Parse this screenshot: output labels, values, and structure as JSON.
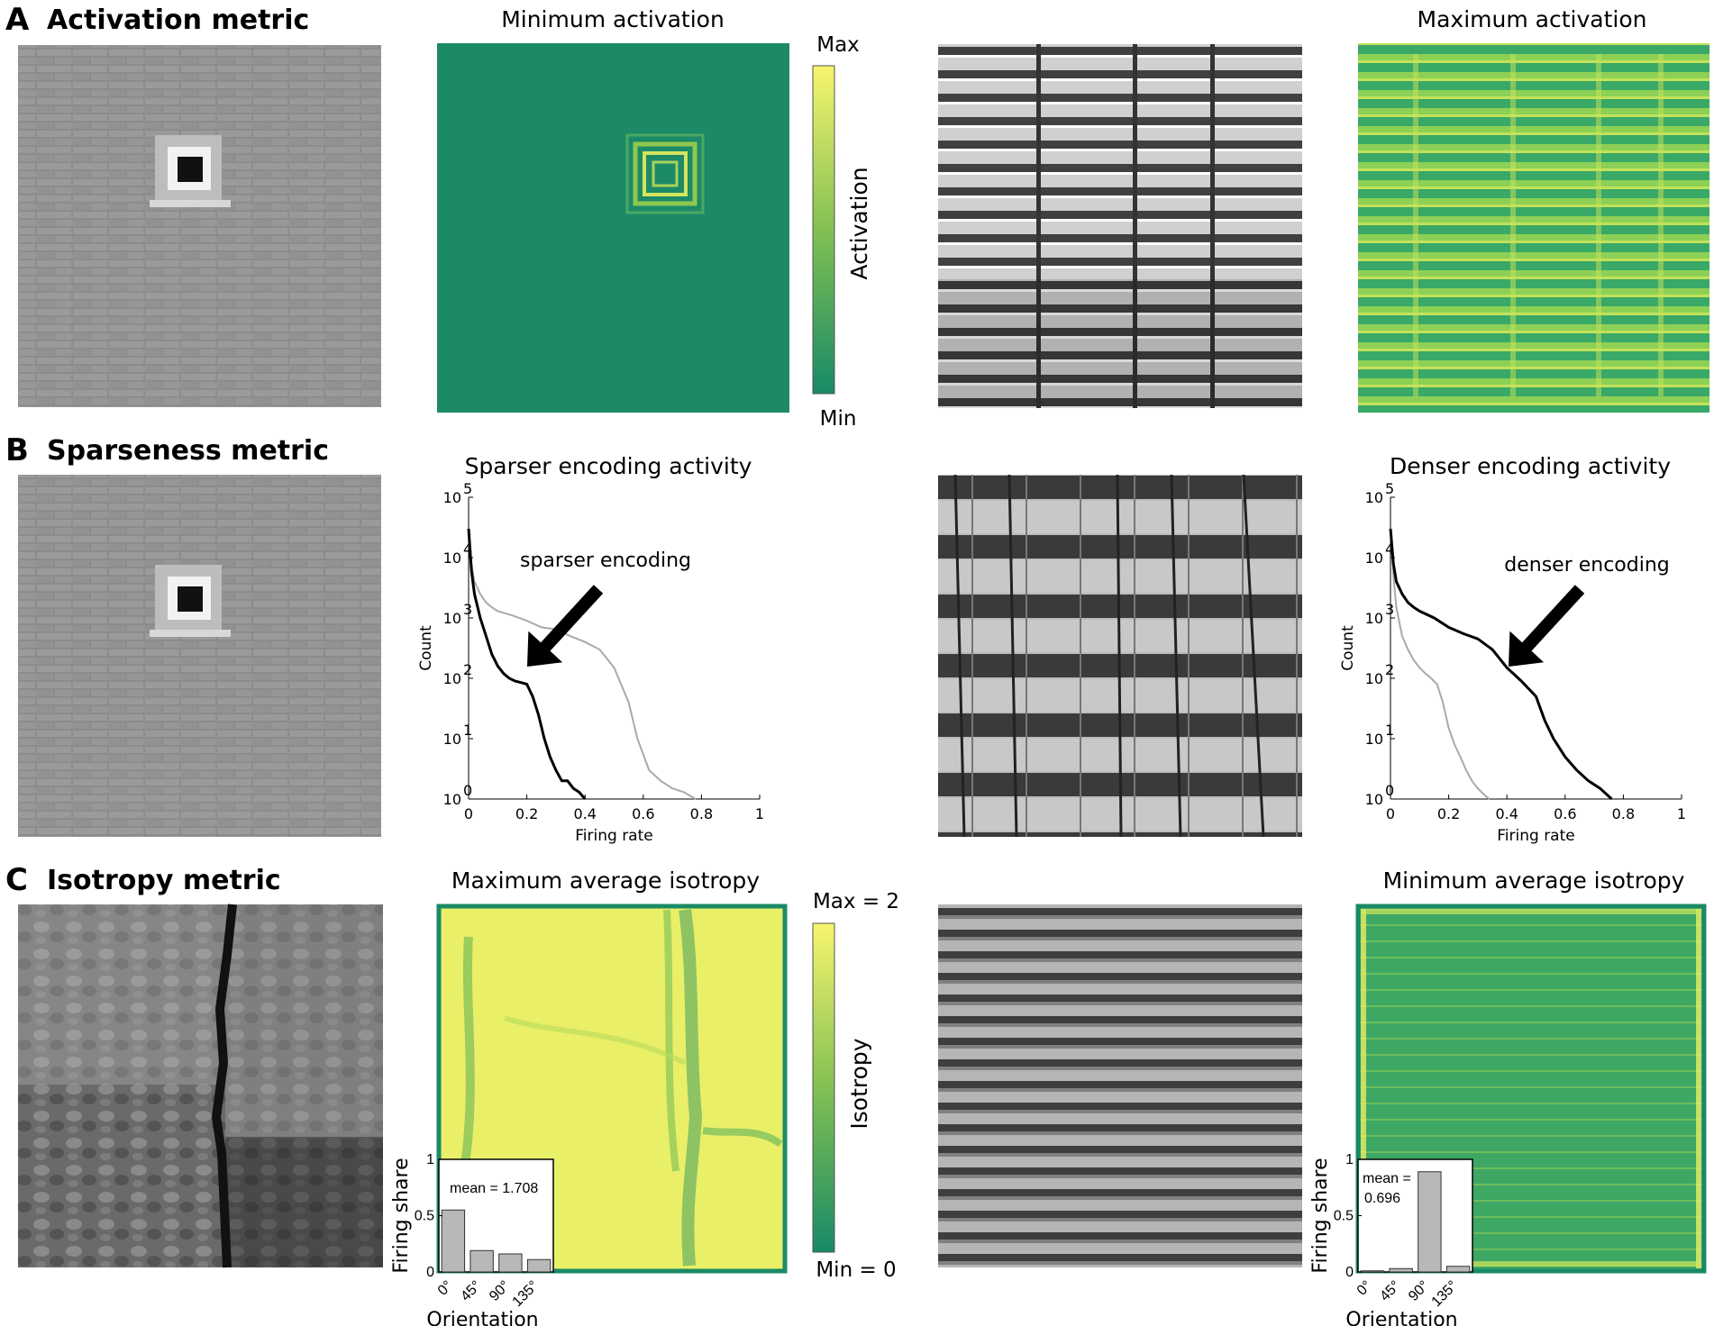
{
  "panels": [
    {
      "letter": "A",
      "title": "Activation metric",
      "left_title": "Minimum activation",
      "right_title": "Maximum activation"
    },
    {
      "letter": "B",
      "title": "Sparseness metric",
      "left_title": "Sparser encoding activity",
      "right_title": "Denser encoding activity"
    },
    {
      "letter": "C",
      "title": "Isotropy metric",
      "left_title": "Maximum average isotropy",
      "right_title": "Minimum average isotropy"
    }
  ],
  "colorbars": {
    "activation": {
      "max": "Max",
      "min": "Min",
      "label": "Activation"
    },
    "isotropy": {
      "max": "Max = 2",
      "min": "Min = 0",
      "label": "Isotropy"
    }
  },
  "colors": {
    "viridis_low": "#1a8a66",
    "viridis_mid": "#8fc94e",
    "viridis_high": "#f5f56a",
    "grey_series": "#aaaaaa",
    "black_series": "#000000",
    "bar_fill": "#b8b8b8"
  },
  "chart_data": [
    {
      "type": "line",
      "title": "Sparser encoding activity",
      "xlabel": "Firing rate",
      "ylabel": "Count",
      "xlim": [
        0,
        1
      ],
      "ylim": [
        1,
        100000
      ],
      "yscale": "log",
      "x_ticks": [
        "0",
        "0.2",
        "0.4",
        "0.6",
        "0.8",
        "1"
      ],
      "y_ticks": [
        "10",
        "10",
        "10",
        "10",
        "10",
        "10"
      ],
      "y_tick_exponents": [
        "0",
        "1",
        "2",
        "3",
        "4",
        "5"
      ],
      "annotation": "sparser encoding",
      "series": [
        {
          "color": "#000000",
          "x": [
            0.0,
            0.01,
            0.02,
            0.04,
            0.06,
            0.08,
            0.1,
            0.12,
            0.14,
            0.16,
            0.18,
            0.2,
            0.22,
            0.24,
            0.26,
            0.28,
            0.3,
            0.32,
            0.34,
            0.36,
            0.38,
            0.4
          ],
          "y": [
            30000,
            6000,
            2500,
            1000,
            500,
            250,
            160,
            120,
            100,
            90,
            85,
            80,
            50,
            25,
            10,
            5,
            3,
            2,
            2,
            1.5,
            1.3,
            1
          ]
        },
        {
          "color": "#aaaaaa",
          "x": [
            0.0,
            0.01,
            0.02,
            0.04,
            0.06,
            0.08,
            0.1,
            0.15,
            0.2,
            0.25,
            0.3,
            0.35,
            0.4,
            0.45,
            0.5,
            0.55,
            0.58,
            0.62,
            0.66,
            0.7,
            0.74,
            0.78
          ],
          "y": [
            30000,
            8000,
            4000,
            2500,
            1800,
            1500,
            1300,
            1100,
            900,
            700,
            650,
            500,
            400,
            300,
            150,
            40,
            10,
            3,
            2,
            1.5,
            1.3,
            1
          ]
        }
      ]
    },
    {
      "type": "line",
      "title": "Denser encoding activity",
      "xlabel": "Firing rate",
      "ylabel": "Count",
      "xlim": [
        0,
        1
      ],
      "ylim": [
        1,
        100000
      ],
      "yscale": "log",
      "x_ticks": [
        "0",
        "0.2",
        "0.4",
        "0.6",
        "0.8",
        "1"
      ],
      "y_ticks": [
        "10",
        "10",
        "10",
        "10",
        "10",
        "10"
      ],
      "y_tick_exponents": [
        "0",
        "1",
        "2",
        "3",
        "4",
        "5"
      ],
      "annotation": "denser encoding",
      "series": [
        {
          "color": "#000000",
          "x": [
            0.0,
            0.01,
            0.02,
            0.04,
            0.06,
            0.08,
            0.1,
            0.15,
            0.2,
            0.25,
            0.3,
            0.35,
            0.4,
            0.45,
            0.5,
            0.53,
            0.56,
            0.6,
            0.64,
            0.68,
            0.72,
            0.76
          ],
          "y": [
            30000,
            8000,
            4000,
            2500,
            1800,
            1500,
            1300,
            1000,
            700,
            550,
            450,
            300,
            150,
            90,
            50,
            20,
            10,
            5,
            3,
            2,
            1.5,
            1
          ]
        },
        {
          "color": "#aaaaaa",
          "x": [
            0.0,
            0.01,
            0.02,
            0.04,
            0.06,
            0.08,
            0.1,
            0.12,
            0.14,
            0.16,
            0.18,
            0.2,
            0.22,
            0.24,
            0.26,
            0.28,
            0.3,
            0.32,
            0.34
          ],
          "y": [
            30000,
            5000,
            1500,
            500,
            300,
            200,
            150,
            120,
            100,
            80,
            40,
            15,
            8,
            5,
            3,
            2,
            1.5,
            1.2,
            1
          ]
        }
      ]
    },
    {
      "type": "bar",
      "xlabel": "Orientation",
      "ylabel": "Firing share",
      "categories": [
        "0°",
        "45°",
        "90°",
        "135°"
      ],
      "values": [
        0.55,
        0.19,
        0.16,
        0.11
      ],
      "ylim": [
        0,
        1
      ],
      "y_ticks": [
        "0",
        "0.5",
        "1"
      ],
      "annotation": "mean = 1.708"
    },
    {
      "type": "bar",
      "xlabel": "Orientation",
      "ylabel": "Firing share",
      "categories": [
        "0°",
        "45°",
        "90°",
        "135°"
      ],
      "values": [
        0.01,
        0.03,
        0.89,
        0.05
      ],
      "ylim": [
        0,
        1
      ],
      "y_ticks": [
        "0",
        "0.5",
        "1"
      ],
      "annotation_lines": [
        "mean =",
        "0.696"
      ]
    }
  ]
}
